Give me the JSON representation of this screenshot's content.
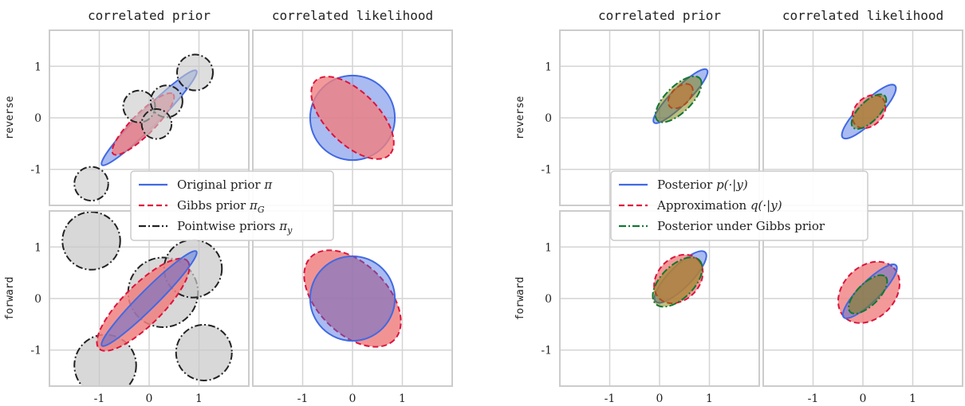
{
  "chart_data": [
    {
      "type": "scatter",
      "column_titles": [
        "correlated prior",
        "correlated likelihood"
      ],
      "row_labels": [
        "reverse",
        "forward"
      ],
      "x_ticks": [
        -1,
        0,
        1
      ],
      "y_ticks": [
        1,
        0,
        -1
      ],
      "tick_labels": {
        "x": [
          "-1",
          "0",
          "1"
        ],
        "y": [
          "1",
          "0",
          "-1"
        ]
      },
      "xlim": [
        -2.0,
        2.0
      ],
      "ylim": [
        -1.7,
        1.7
      ],
      "grid": true,
      "legend_position": "center",
      "legend": [
        {
          "label": "Original prior ",
          "math": "π",
          "sub": "",
          "color": "#4169e1",
          "dash": "solid"
        },
        {
          "label": "Gibbs prior ",
          "math": "π",
          "sub": "G",
          "color": "#dc143c",
          "dash": "dashed"
        },
        {
          "label": "Pointwise priors ",
          "math": "π",
          "sub": "y",
          "color": "#222222",
          "dash": "dashdot"
        }
      ],
      "panels": [
        {
          "row": 0,
          "col": 0,
          "ellipses": [
            {
              "role": "original-prior",
              "cx": 0.0,
              "cy": 0.0,
              "rx": 1.34,
              "ry": 0.18,
              "angle": 45,
              "fill": "#4169e1",
              "stroke": "#4169e1",
              "dash": "solid",
              "opacity": 0.45
            },
            {
              "role": "gibbs-prior",
              "cx": -0.12,
              "cy": -0.12,
              "rx": 0.85,
              "ry": 0.22,
              "angle": 45,
              "fill": "#f08080",
              "stroke": "#dc143c",
              "dash": "dashed",
              "opacity": 0.8
            },
            {
              "role": "pointwise-prior",
              "cx": -0.2,
              "cy": 0.22,
              "rx": 0.32,
              "ry": 0.32,
              "angle": 0,
              "fill": "#c8c8c8",
              "stroke": "#222222",
              "dash": "dashdot",
              "opacity": 0.6
            },
            {
              "role": "pointwise-prior",
              "cx": 0.35,
              "cy": 0.32,
              "rx": 0.32,
              "ry": 0.32,
              "angle": 0,
              "fill": "#c8c8c8",
              "stroke": "#222222",
              "dash": "dashdot",
              "opacity": 0.6
            },
            {
              "role": "pointwise-prior",
              "cx": 0.15,
              "cy": -0.12,
              "rx": 0.3,
              "ry": 0.3,
              "angle": 0,
              "fill": "#c8c8c8",
              "stroke": "#222222",
              "dash": "dashdot",
              "opacity": 0.6
            },
            {
              "role": "pointwise-prior",
              "cx": 0.92,
              "cy": 0.88,
              "rx": 0.36,
              "ry": 0.36,
              "angle": 0,
              "fill": "#c8c8c8",
              "stroke": "#222222",
              "dash": "dashdot",
              "opacity": 0.6
            },
            {
              "role": "pointwise-prior",
              "cx": -1.16,
              "cy": -1.28,
              "rx": 0.34,
              "ry": 0.34,
              "angle": 0,
              "fill": "#c8c8c8",
              "stroke": "#222222",
              "dash": "dashdot",
              "opacity": 0.6
            }
          ]
        },
        {
          "row": 0,
          "col": 1,
          "ellipses": [
            {
              "role": "original-prior",
              "cx": 0.0,
              "cy": 0.0,
              "rx": 0.85,
              "ry": 0.85,
              "angle": 0,
              "fill": "#4169e1",
              "stroke": "#4169e1",
              "dash": "solid",
              "opacity": 0.45
            },
            {
              "role": "gibbs-prior",
              "cx": 0.0,
              "cy": 0.0,
              "rx": 1.05,
              "ry": 0.52,
              "angle": -45,
              "fill": "#f08080",
              "stroke": "#dc143c",
              "dash": "dashed",
              "opacity": 0.8
            }
          ]
        },
        {
          "row": 1,
          "col": 0,
          "ellipses": [
            {
              "role": "pointwise-prior",
              "cx": -1.16,
              "cy": 1.12,
              "rx": 0.58,
              "ry": 0.58,
              "angle": 0,
              "fill": "#c8c8c8",
              "stroke": "#222222",
              "dash": "dashdot",
              "opacity": 0.7
            },
            {
              "role": "pointwise-prior",
              "cx": 0.28,
              "cy": 0.12,
              "rx": 0.7,
              "ry": 0.7,
              "angle": 0,
              "fill": "#c8c8c8",
              "stroke": "#222222",
              "dash": "dashdot",
              "opacity": 0.7
            },
            {
              "role": "pointwise-prior",
              "cx": 0.88,
              "cy": 0.58,
              "rx": 0.58,
              "ry": 0.58,
              "angle": 0,
              "fill": "#c8c8c8",
              "stroke": "#222222",
              "dash": "dashdot",
              "opacity": 0.7
            },
            {
              "role": "pointwise-prior",
              "cx": -0.88,
              "cy": -1.3,
              "rx": 0.62,
              "ry": 0.62,
              "angle": 0,
              "fill": "#c8c8c8",
              "stroke": "#222222",
              "dash": "dashdot",
              "opacity": 0.7
            },
            {
              "role": "pointwise-prior",
              "cx": 1.1,
              "cy": -1.05,
              "rx": 0.56,
              "ry": 0.56,
              "angle": 0,
              "fill": "#c8c8c8",
              "stroke": "#222222",
              "dash": "dashdot",
              "opacity": 0.7
            },
            {
              "role": "gibbs-prior",
              "cx": -0.12,
              "cy": -0.12,
              "rx": 1.25,
              "ry": 0.4,
              "angle": 45,
              "fill": "#f08080",
              "stroke": "#dc143c",
              "dash": "dashed",
              "opacity": 0.85
            },
            {
              "role": "original-prior",
              "cx": 0.0,
              "cy": 0.0,
              "rx": 1.34,
              "ry": 0.18,
              "angle": 45,
              "fill": "#4169e1",
              "stroke": "#4169e1",
              "dash": "solid",
              "opacity": 0.45
            }
          ]
        },
        {
          "row": 1,
          "col": 1,
          "ellipses": [
            {
              "role": "gibbs-prior",
              "cx": 0.0,
              "cy": 0.0,
              "rx": 1.18,
              "ry": 0.7,
              "angle": -45,
              "fill": "#f08080",
              "stroke": "#dc143c",
              "dash": "dashed",
              "opacity": 0.85
            },
            {
              "role": "original-prior",
              "cx": 0.0,
              "cy": 0.0,
              "rx": 0.85,
              "ry": 0.85,
              "angle": 0,
              "fill": "#4169e1",
              "stroke": "#4169e1",
              "dash": "solid",
              "opacity": 0.45
            }
          ]
        }
      ]
    },
    {
      "type": "scatter",
      "column_titles": [
        "correlated prior",
        "correlated likelihood"
      ],
      "row_labels": [
        "reverse",
        "forward"
      ],
      "x_ticks": [
        -1,
        0,
        1
      ],
      "y_ticks": [
        1,
        0,
        -1
      ],
      "tick_labels": {
        "x": [
          "-1",
          "0",
          "1"
        ],
        "y": [
          "1",
          "0",
          "-1"
        ]
      },
      "xlim": [
        -2.0,
        2.0
      ],
      "ylim": [
        -1.7,
        1.7
      ],
      "grid": true,
      "legend_position": "center",
      "legend": [
        {
          "label": "Posterior ",
          "math": "p(·|y)",
          "sub": "",
          "color": "#4169e1",
          "dash": "solid"
        },
        {
          "label": "Approximation ",
          "math": "q(·|y)",
          "sub": "",
          "color": "#dc143c",
          "dash": "dashed"
        },
        {
          "label": "Posterior under Gibbs prior",
          "math": "",
          "sub": "",
          "color": "#117733",
          "dash": "dashdot"
        }
      ],
      "panels": [
        {
          "row": 0,
          "col": 0,
          "ellipses": [
            {
              "role": "posterior",
              "cx": 0.42,
              "cy": 0.42,
              "rx": 0.75,
              "ry": 0.17,
              "angle": 45,
              "fill": "#4169e1",
              "stroke": "#4169e1",
              "dash": "solid",
              "opacity": 0.45
            },
            {
              "role": "approximation",
              "cx": 0.42,
              "cy": 0.42,
              "rx": 0.3,
              "ry": 0.18,
              "angle": 45,
              "fill": "#f08080",
              "stroke": "#dc143c",
              "dash": "dashed",
              "opacity": 0.8
            },
            {
              "role": "gibbs-posterior",
              "cx": 0.38,
              "cy": 0.36,
              "rx": 0.6,
              "ry": 0.26,
              "angle": 45,
              "fill": "#808000",
              "stroke": "#117733",
              "dash": "dashdot",
              "opacity": 0.5
            }
          ]
        },
        {
          "row": 0,
          "col": 1,
          "ellipses": [
            {
              "role": "posterior",
              "cx": 0.12,
              "cy": 0.12,
              "rx": 0.74,
              "ry": 0.2,
              "angle": 45,
              "fill": "#4169e1",
              "stroke": "#4169e1",
              "dash": "solid",
              "opacity": 0.45
            },
            {
              "role": "approximation",
              "cx": 0.12,
              "cy": 0.12,
              "rx": 0.38,
              "ry": 0.28,
              "angle": 45,
              "fill": "#f08080",
              "stroke": "#dc143c",
              "dash": "dashed",
              "opacity": 0.8
            },
            {
              "role": "gibbs-posterior",
              "cx": 0.12,
              "cy": 0.12,
              "rx": 0.45,
              "ry": 0.2,
              "angle": 45,
              "fill": "#808000",
              "stroke": "#117733",
              "dash": "dashdot",
              "opacity": 0.5
            }
          ]
        },
        {
          "row": 1,
          "col": 0,
          "ellipses": [
            {
              "role": "posterior",
              "cx": 0.42,
              "cy": 0.42,
              "rx": 0.7,
              "ry": 0.22,
              "angle": 45,
              "fill": "#4169e1",
              "stroke": "#4169e1",
              "dash": "solid",
              "opacity": 0.45
            },
            {
              "role": "approximation",
              "cx": 0.38,
              "cy": 0.38,
              "rx": 0.55,
              "ry": 0.42,
              "angle": 45,
              "fill": "#f08080",
              "stroke": "#dc143c",
              "dash": "dashed",
              "opacity": 0.8
            },
            {
              "role": "gibbs-posterior",
              "cx": 0.36,
              "cy": 0.32,
              "rx": 0.62,
              "ry": 0.33,
              "angle": 45,
              "fill": "#808000",
              "stroke": "#117733",
              "dash": "dashdot",
              "opacity": 0.5
            }
          ]
        },
        {
          "row": 1,
          "col": 1,
          "ellipses": [
            {
              "role": "approximation",
              "cx": 0.12,
              "cy": 0.12,
              "rx": 0.7,
              "ry": 0.52,
              "angle": 45,
              "fill": "#f08080",
              "stroke": "#dc143c",
              "dash": "dashed",
              "opacity": 0.8
            },
            {
              "role": "posterior",
              "cx": 0.14,
              "cy": 0.14,
              "rx": 0.74,
              "ry": 0.2,
              "angle": 45,
              "fill": "#4169e1",
              "stroke": "#4169e1",
              "dash": "solid",
              "opacity": 0.45
            },
            {
              "role": "gibbs-posterior",
              "cx": 0.1,
              "cy": 0.08,
              "rx": 0.5,
              "ry": 0.22,
              "angle": 45,
              "fill": "#808000",
              "stroke": "#117733",
              "dash": "dashdot",
              "opacity": 0.5
            }
          ]
        }
      ]
    }
  ]
}
